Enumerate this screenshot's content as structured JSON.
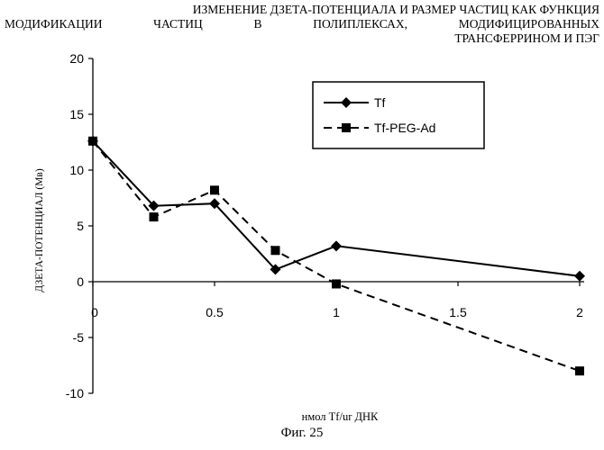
{
  "title_lines": [
    "ИЗМЕНЕНИЕ ДЗЕТА-ПОТЕНЦИАЛА И РАЗМЕР ЧАСТИЦ КАК ФУНКЦИЯ",
    "МОДИФИКАЦИИ ЧАСТИЦ В ПОЛИПЛЕКСАХ, МОДИФИЦИРОВАННЫХ",
    "ТРАНСФЕРРИНОМ И ПЭГ"
  ],
  "caption": "Фиг. 25",
  "chart_data": {
    "type": "line",
    "title": "ИЗМЕНЕНИЕ ДЗЕТА-ПОТЕНЦИАЛА И РАЗМЕР ЧАСТИЦ КАК ФУНКЦИЯ МОДИФИКАЦИИ ЧАСТИЦ В ПОЛИПЛЕКСАХ, МОДИФИЦИРОВАННЫХ ТРАНСФЕРРИНОМ И ПЭГ",
    "xlabel": "нмол Tf/ur ДНК",
    "ylabel": "ДЗЕТА-ПОТЕНЦИАЛ (Мв)",
    "ylim": [
      -10,
      20
    ],
    "xlim": [
      0,
      2
    ],
    "x_ticks": [
      "0",
      "0.5",
      "1",
      "1.5",
      "2"
    ],
    "y_ticks": [
      "20",
      "15",
      "10",
      "5",
      "0",
      "-5",
      "-10"
    ],
    "x_categories": [
      "0",
      "0.25",
      "0.5",
      "0.75",
      "1",
      "2"
    ],
    "legend_position": "top-right",
    "grid": false,
    "series": [
      {
        "name": "Tf",
        "marker": "diamond",
        "line_style": "solid",
        "color": "#000000",
        "values": [
          12.6,
          6.8,
          7.0,
          1.1,
          3.2,
          0.5
        ]
      },
      {
        "name": "Tf-PEG-Ad",
        "marker": "square",
        "line_style": "dashed",
        "color": "#000000",
        "values": [
          12.6,
          5.8,
          8.2,
          2.8,
          -0.2,
          -8.0
        ]
      }
    ]
  }
}
